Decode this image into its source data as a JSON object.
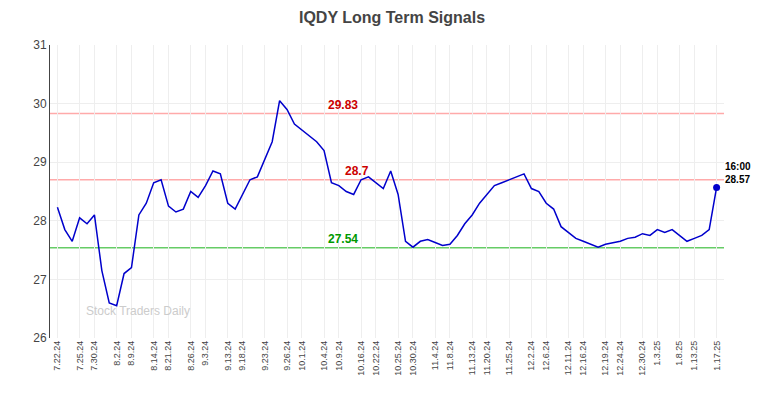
{
  "chart_data": {
    "type": "line",
    "title": "IQDY Long Term Signals",
    "categories": [
      "7.22.24",
      null,
      null,
      "7.25.24",
      null,
      "7.30.24",
      null,
      null,
      "8.2.24",
      null,
      "8.9.24",
      null,
      null,
      "8.14.24",
      null,
      "8.21.24",
      null,
      null,
      "8.26.24",
      null,
      "9.3.24",
      null,
      null,
      "9.13.24",
      null,
      "9.18.24",
      null,
      null,
      "9.23.24",
      null,
      null,
      "9.26.24",
      null,
      "10.1.24",
      null,
      null,
      "10.4.24",
      null,
      "10.9.24",
      null,
      null,
      "10.16.24",
      null,
      "10.22.24",
      null,
      null,
      "10.25.24",
      null,
      "10.30.24",
      null,
      null,
      "11.4.24",
      null,
      "11.8.24",
      null,
      null,
      "11.13.24",
      null,
      "11.20.24",
      null,
      null,
      "11.25.24",
      null,
      null,
      "12.2.24",
      null,
      "12.6.24",
      null,
      null,
      "12.11.24",
      null,
      "12.16.24",
      null,
      null,
      "12.19.24",
      null,
      "12.24.24",
      null,
      null,
      "12.30.24",
      null,
      "1.3.25",
      null,
      null,
      "1.8.25",
      null,
      "1.13.25",
      null,
      null,
      "1.17.25"
    ],
    "series": [
      {
        "color": "#0000cc",
        "values": [
          28.23,
          27.85,
          27.65,
          28.05,
          27.95,
          28.1,
          27.15,
          26.6,
          26.55,
          27.1,
          27.2,
          28.1,
          28.3,
          28.65,
          28.7,
          28.25,
          28.15,
          28.2,
          28.5,
          28.4,
          28.6,
          28.85,
          28.8,
          28.3,
          28.2,
          28.45,
          28.7,
          28.75,
          29.05,
          29.35,
          30.05,
          29.9,
          29.65,
          29.55,
          29.45,
          29.35,
          29.2,
          28.65,
          28.6,
          28.5,
          28.45,
          28.7,
          28.75,
          28.65,
          28.55,
          28.85,
          28.45,
          27.65,
          27.55,
          27.65,
          27.68,
          27.63,
          27.58,
          27.6,
          27.75,
          27.95,
          28.1,
          28.3,
          28.45,
          28.6,
          28.65,
          28.7,
          28.75,
          28.8,
          28.55,
          28.5,
          28.3,
          28.2,
          27.9,
          27.8,
          27.7,
          27.65,
          27.6,
          27.55,
          27.6,
          27.62,
          27.65,
          27.7,
          27.72,
          27.78,
          27.75,
          27.85,
          27.8,
          27.85,
          27.75,
          27.65,
          27.7,
          27.75,
          27.85,
          28.57
        ]
      }
    ],
    "reference_lines": [
      {
        "value": 29.83,
        "label": "29.83",
        "color": "#ffaaaa",
        "label_color": "#cc0000"
      },
      {
        "value": 28.7,
        "label": "28.7",
        "color": "#ffaaaa",
        "label_color": "#cc0000"
      },
      {
        "value": 27.54,
        "label": "27.54",
        "color": "#66cc66",
        "label_color": "#009900"
      }
    ],
    "annotations": [
      {
        "text": "16:00\n28.57",
        "value": 28.57
      },
      {
        "text": "Stock Traders Daily",
        "color": "#cccccc"
      }
    ],
    "ylim": [
      26,
      31
    ],
    "yticks": [
      26,
      27,
      28,
      29,
      30,
      31
    ],
    "grid": true
  }
}
